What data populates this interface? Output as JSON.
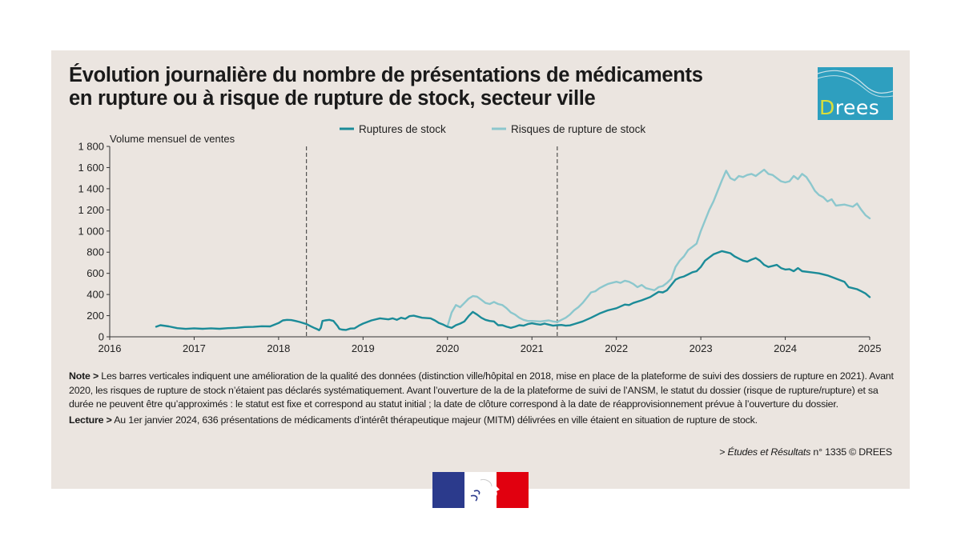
{
  "title_lines": [
    "Évolution journalière du nombre de présentations de médicaments",
    "en rupture ou à risque de rupture de stock, secteur ville"
  ],
  "logo": {
    "text_first": "D",
    "text_rest": "rees",
    "bg_color": "#2e9fbf",
    "accent_color": "#d9de3a"
  },
  "note": {
    "label": "Note >",
    "text": " Les barres verticales indiquent une amélioration de la qualité des données (distinction ville/hôpital en 2018, mise en place de la plateforme de suivi des dossiers de rupture en 2021). Avant 2020, les risques de rupture de stock n’étaient pas déclarés systématiquement. Avant l’ouverture de la de la plateforme de suivi de l’ANSM, le statut du dossier (risque de rupture/rupture) et sa durée ne peuvent être qu’approximés : le statut est fixe et correspond au statut initial ; la date de clôture correspond à la date de réapprovisionnement prévue à l’ouverture du dossier."
  },
  "lecture": {
    "label": "Lecture >",
    "text": " Au 1er janvier 2024, 636 présentations de médicaments d’intérêt thérapeutique majeur (MITM) délivrées en ville étaient en situation de rupture de stock."
  },
  "source": {
    "prefix": "> ",
    "italic": "Études et Résultats",
    "rest": " n° 1335 © DREES"
  },
  "chart_data": {
    "type": "line",
    "ylabel": "Volume mensuel de ventes",
    "xlim": [
      2016,
      2025
    ],
    "ylim": [
      0,
      1800
    ],
    "x_ticks": [
      "2016",
      "2017",
      "2018",
      "2019",
      "2020",
      "2021",
      "2022",
      "2023",
      "2024",
      "2025"
    ],
    "y_ticks": [
      "0",
      "200",
      "400",
      "600",
      "800",
      "1 000",
      "1 200",
      "1 400",
      "1 600",
      "1 800"
    ],
    "grid": false,
    "legend_position": "top-center",
    "vertical_markers": [
      2018.33,
      2021.3
    ],
    "series": [
      {
        "name": "Ruptures de stock",
        "color": "#1b8b98",
        "points": [
          [
            2016.55,
            95
          ],
          [
            2016.6,
            110
          ],
          [
            2016.7,
            98
          ],
          [
            2016.8,
            82
          ],
          [
            2016.9,
            75
          ],
          [
            2017.0,
            80
          ],
          [
            2017.1,
            76
          ],
          [
            2017.2,
            80
          ],
          [
            2017.3,
            76
          ],
          [
            2017.4,
            82
          ],
          [
            2017.5,
            85
          ],
          [
            2017.6,
            92
          ],
          [
            2017.7,
            94
          ],
          [
            2017.8,
            100
          ],
          [
            2017.9,
            98
          ],
          [
            2018.0,
            130
          ],
          [
            2018.05,
            155
          ],
          [
            2018.1,
            160
          ],
          [
            2018.15,
            158
          ],
          [
            2018.2,
            150
          ],
          [
            2018.25,
            140
          ],
          [
            2018.33,
            120
          ],
          [
            2018.38,
            100
          ],
          [
            2018.42,
            85
          ],
          [
            2018.45,
            75
          ],
          [
            2018.48,
            62
          ],
          [
            2018.5,
            85
          ],
          [
            2018.52,
            150
          ],
          [
            2018.55,
            155
          ],
          [
            2018.6,
            160
          ],
          [
            2018.65,
            150
          ],
          [
            2018.7,
            100
          ],
          [
            2018.72,
            75
          ],
          [
            2018.75,
            68
          ],
          [
            2018.8,
            65
          ],
          [
            2018.85,
            78
          ],
          [
            2018.9,
            80
          ],
          [
            2018.95,
            105
          ],
          [
            2019.0,
            125
          ],
          [
            2019.05,
            140
          ],
          [
            2019.1,
            155
          ],
          [
            2019.2,
            175
          ],
          [
            2019.3,
            165
          ],
          [
            2019.35,
            175
          ],
          [
            2019.4,
            160
          ],
          [
            2019.45,
            180
          ],
          [
            2019.5,
            170
          ],
          [
            2019.55,
            195
          ],
          [
            2019.6,
            200
          ],
          [
            2019.7,
            180
          ],
          [
            2019.8,
            175
          ],
          [
            2019.85,
            155
          ],
          [
            2019.9,
            130
          ],
          [
            2019.95,
            115
          ],
          [
            2020.0,
            95
          ],
          [
            2020.05,
            85
          ],
          [
            2020.1,
            110
          ],
          [
            2020.15,
            125
          ],
          [
            2020.2,
            145
          ],
          [
            2020.25,
            195
          ],
          [
            2020.3,
            235
          ],
          [
            2020.35,
            210
          ],
          [
            2020.4,
            180
          ],
          [
            2020.45,
            160
          ],
          [
            2020.5,
            150
          ],
          [
            2020.55,
            145
          ],
          [
            2020.6,
            110
          ],
          [
            2020.65,
            110
          ],
          [
            2020.7,
            95
          ],
          [
            2020.75,
            85
          ],
          [
            2020.8,
            95
          ],
          [
            2020.85,
            110
          ],
          [
            2020.9,
            105
          ],
          [
            2020.95,
            120
          ],
          [
            2021.0,
            128
          ],
          [
            2021.05,
            120
          ],
          [
            2021.1,
            115
          ],
          [
            2021.15,
            125
          ],
          [
            2021.2,
            115
          ],
          [
            2021.25,
            105
          ],
          [
            2021.3,
            110
          ],
          [
            2021.35,
            112
          ],
          [
            2021.4,
            105
          ],
          [
            2021.45,
            108
          ],
          [
            2021.5,
            120
          ],
          [
            2021.6,
            145
          ],
          [
            2021.7,
            180
          ],
          [
            2021.8,
            220
          ],
          [
            2021.9,
            250
          ],
          [
            2022.0,
            270
          ],
          [
            2022.1,
            305
          ],
          [
            2022.15,
            300
          ],
          [
            2022.2,
            320
          ],
          [
            2022.3,
            345
          ],
          [
            2022.4,
            375
          ],
          [
            2022.5,
            425
          ],
          [
            2022.55,
            420
          ],
          [
            2022.6,
            440
          ],
          [
            2022.65,
            490
          ],
          [
            2022.7,
            540
          ],
          [
            2022.75,
            560
          ],
          [
            2022.8,
            570
          ],
          [
            2022.85,
            590
          ],
          [
            2022.9,
            610
          ],
          [
            2022.95,
            620
          ],
          [
            2023.0,
            660
          ],
          [
            2023.05,
            720
          ],
          [
            2023.1,
            750
          ],
          [
            2023.15,
            780
          ],
          [
            2023.2,
            795
          ],
          [
            2023.25,
            810
          ],
          [
            2023.3,
            800
          ],
          [
            2023.35,
            790
          ],
          [
            2023.4,
            760
          ],
          [
            2023.45,
            740
          ],
          [
            2023.5,
            720
          ],
          [
            2023.55,
            710
          ],
          [
            2023.6,
            730
          ],
          [
            2023.65,
            745
          ],
          [
            2023.7,
            720
          ],
          [
            2023.75,
            680
          ],
          [
            2023.8,
            660
          ],
          [
            2023.85,
            670
          ],
          [
            2023.9,
            680
          ],
          [
            2023.95,
            650
          ],
          [
            2024.0,
            636
          ],
          [
            2024.05,
            640
          ],
          [
            2024.1,
            620
          ],
          [
            2024.15,
            650
          ],
          [
            2024.2,
            620
          ],
          [
            2024.3,
            610
          ],
          [
            2024.4,
            600
          ],
          [
            2024.5,
            580
          ],
          [
            2024.6,
            550
          ],
          [
            2024.7,
            520
          ],
          [
            2024.75,
            470
          ],
          [
            2024.8,
            460
          ],
          [
            2024.85,
            450
          ],
          [
            2024.9,
            430
          ],
          [
            2024.95,
            410
          ],
          [
            2025.0,
            375
          ]
        ]
      },
      {
        "name": "Risques de rupture de stock",
        "color": "#8cc7cd",
        "points": [
          [
            2020.0,
            100
          ],
          [
            2020.05,
            230
          ],
          [
            2020.1,
            300
          ],
          [
            2020.15,
            280
          ],
          [
            2020.2,
            320
          ],
          [
            2020.25,
            360
          ],
          [
            2020.3,
            385
          ],
          [
            2020.35,
            380
          ],
          [
            2020.4,
            350
          ],
          [
            2020.45,
            320
          ],
          [
            2020.5,
            310
          ],
          [
            2020.55,
            330
          ],
          [
            2020.6,
            310
          ],
          [
            2020.65,
            300
          ],
          [
            2020.7,
            270
          ],
          [
            2020.75,
            230
          ],
          [
            2020.8,
            210
          ],
          [
            2020.85,
            180
          ],
          [
            2020.9,
            160
          ],
          [
            2020.95,
            150
          ],
          [
            2021.0,
            150
          ],
          [
            2021.1,
            145
          ],
          [
            2021.2,
            155
          ],
          [
            2021.25,
            145
          ],
          [
            2021.3,
            140
          ],
          [
            2021.35,
            160
          ],
          [
            2021.4,
            180
          ],
          [
            2021.45,
            210
          ],
          [
            2021.5,
            250
          ],
          [
            2021.55,
            280
          ],
          [
            2021.6,
            320
          ],
          [
            2021.65,
            370
          ],
          [
            2021.7,
            420
          ],
          [
            2021.75,
            430
          ],
          [
            2021.8,
            460
          ],
          [
            2021.85,
            480
          ],
          [
            2021.9,
            500
          ],
          [
            2022.0,
            520
          ],
          [
            2022.05,
            510
          ],
          [
            2022.1,
            530
          ],
          [
            2022.15,
            520
          ],
          [
            2022.2,
            500
          ],
          [
            2022.25,
            470
          ],
          [
            2022.3,
            490
          ],
          [
            2022.35,
            460
          ],
          [
            2022.4,
            450
          ],
          [
            2022.45,
            440
          ],
          [
            2022.5,
            470
          ],
          [
            2022.55,
            480
          ],
          [
            2022.6,
            510
          ],
          [
            2022.65,
            550
          ],
          [
            2022.7,
            660
          ],
          [
            2022.75,
            720
          ],
          [
            2022.8,
            760
          ],
          [
            2022.85,
            820
          ],
          [
            2022.9,
            850
          ],
          [
            2022.95,
            880
          ],
          [
            2023.0,
            1000
          ],
          [
            2023.05,
            1100
          ],
          [
            2023.1,
            1200
          ],
          [
            2023.15,
            1280
          ],
          [
            2023.2,
            1380
          ],
          [
            2023.25,
            1480
          ],
          [
            2023.3,
            1570
          ],
          [
            2023.35,
            1500
          ],
          [
            2023.4,
            1480
          ],
          [
            2023.45,
            1520
          ],
          [
            2023.5,
            1510
          ],
          [
            2023.55,
            1530
          ],
          [
            2023.6,
            1540
          ],
          [
            2023.65,
            1520
          ],
          [
            2023.7,
            1550
          ],
          [
            2023.75,
            1580
          ],
          [
            2023.8,
            1540
          ],
          [
            2023.85,
            1530
          ],
          [
            2023.9,
            1500
          ],
          [
            2023.95,
            1470
          ],
          [
            2024.0,
            1460
          ],
          [
            2024.05,
            1470
          ],
          [
            2024.1,
            1520
          ],
          [
            2024.15,
            1490
          ],
          [
            2024.2,
            1540
          ],
          [
            2024.25,
            1510
          ],
          [
            2024.3,
            1450
          ],
          [
            2024.35,
            1380
          ],
          [
            2024.4,
            1340
          ],
          [
            2024.45,
            1320
          ],
          [
            2024.5,
            1280
          ],
          [
            2024.55,
            1300
          ],
          [
            2024.6,
            1240
          ],
          [
            2024.7,
            1250
          ],
          [
            2024.75,
            1240
          ],
          [
            2024.8,
            1230
          ],
          [
            2024.85,
            1260
          ],
          [
            2024.9,
            1200
          ],
          [
            2024.95,
            1150
          ],
          [
            2025.0,
            1120
          ]
        ]
      }
    ]
  }
}
